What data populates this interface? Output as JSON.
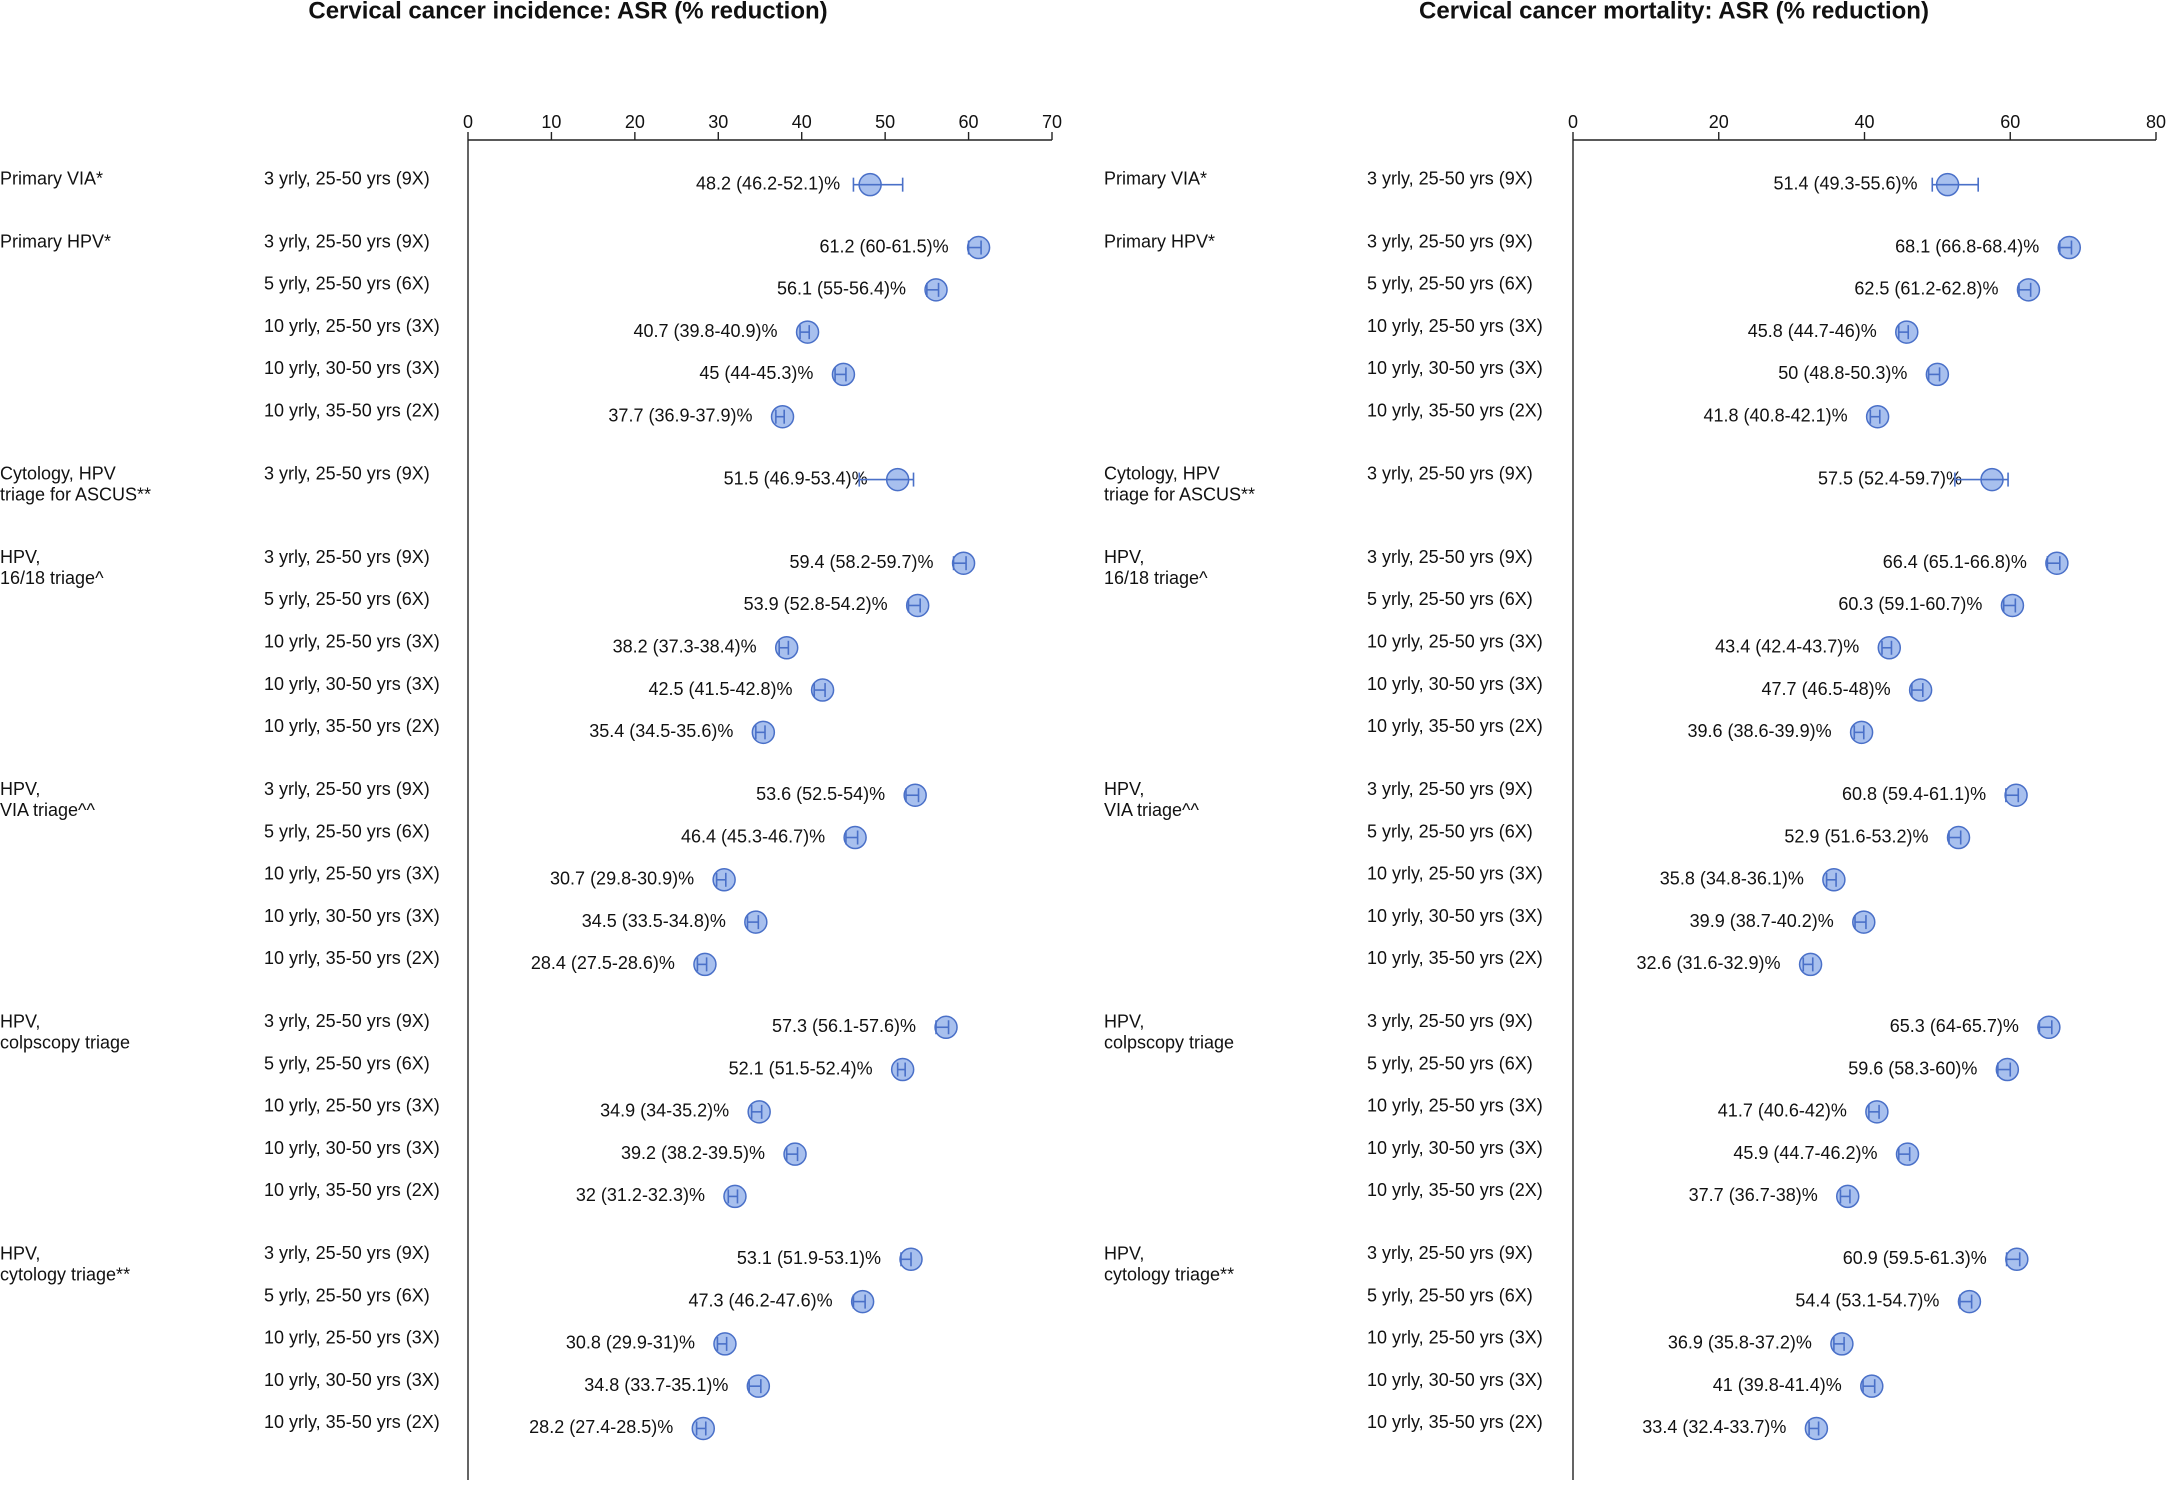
{
  "chart_data": [
    {
      "type": "forest",
      "title": "Cervical cancer incidence: ASR (% reduction)",
      "xlim": [
        0,
        70
      ],
      "xticks": [
        0,
        10,
        20,
        30,
        40,
        50,
        60,
        70
      ],
      "color": "#a8c0ee",
      "edgecolor": "#4a70c8",
      "groups": [
        {
          "name": "Primary VIA*",
          "categories": [
            "3 yrly, 25-50 yrs (9X)"
          ],
          "values": [
            48.2
          ],
          "lower": [
            46.2
          ],
          "upper": [
            52.1
          ],
          "value_labels": [
            "48.2 (46.2-52.1)%"
          ]
        },
        {
          "name": "Primary HPV*",
          "categories": [
            "3 yrly, 25-50 yrs (9X)",
            "5 yrly, 25-50 yrs (6X)",
            "10 yrly, 25-50 yrs (3X)",
            "10 yrly, 30-50 yrs (3X)",
            "10 yrly, 35-50 yrs (2X)"
          ],
          "values": [
            61.2,
            56.1,
            40.7,
            45,
            37.7
          ],
          "lower": [
            60,
            55,
            39.8,
            44,
            36.9
          ],
          "upper": [
            61.5,
            56.4,
            40.9,
            45.3,
            37.9
          ],
          "value_labels": [
            "61.2 (60-61.5)%",
            "56.1 (55-56.4)%",
            "40.7 (39.8-40.9)%",
            "45 (44-45.3)%",
            "37.7 (36.9-37.9)%"
          ]
        },
        {
          "name": "Cytology, HPV\ntriage for ASCUS**",
          "categories": [
            "3 yrly, 25-50 yrs (9X)"
          ],
          "values": [
            51.5
          ],
          "lower": [
            46.9
          ],
          "upper": [
            53.4
          ],
          "value_labels": [
            "51.5 (46.9-53.4)%"
          ]
        },
        {
          "name": "HPV,\n16/18 triage^",
          "categories": [
            "3 yrly, 25-50 yrs (9X)",
            "5 yrly, 25-50 yrs (6X)",
            "10 yrly, 25-50 yrs (3X)",
            "10 yrly, 30-50 yrs (3X)",
            "10 yrly, 35-50 yrs (2X)"
          ],
          "values": [
            59.4,
            53.9,
            38.2,
            42.5,
            35.4
          ],
          "lower": [
            58.2,
            52.8,
            37.3,
            41.5,
            34.5
          ],
          "upper": [
            59.7,
            54.2,
            38.4,
            42.8,
            35.6
          ],
          "value_labels": [
            "59.4 (58.2-59.7)%",
            "53.9 (52.8-54.2)%",
            "38.2 (37.3-38.4)%",
            "42.5 (41.5-42.8)%",
            "35.4 (34.5-35.6)%"
          ]
        },
        {
          "name": "HPV,\nVIA triage^^",
          "categories": [
            "3 yrly, 25-50 yrs (9X)",
            "5 yrly, 25-50 yrs (6X)",
            "10 yrly, 25-50 yrs (3X)",
            "10 yrly, 30-50 yrs (3X)",
            "10 yrly, 35-50 yrs (2X)"
          ],
          "values": [
            53.6,
            46.4,
            30.7,
            34.5,
            28.4
          ],
          "lower": [
            52.5,
            45.3,
            29.8,
            33.5,
            27.5
          ],
          "upper": [
            54,
            46.7,
            30.9,
            34.8,
            28.6
          ],
          "value_labels": [
            "53.6 (52.5-54)%",
            "46.4 (45.3-46.7)%",
            "30.7 (29.8-30.9)%",
            "34.5 (33.5-34.8)%",
            "28.4 (27.5-28.6)%"
          ]
        },
        {
          "name": "HPV,\ncolpscopy triage",
          "categories": [
            "3 yrly, 25-50 yrs (9X)",
            "5 yrly, 25-50 yrs (6X)",
            "10 yrly, 25-50 yrs (3X)",
            "10 yrly, 30-50 yrs (3X)",
            "10 yrly, 35-50 yrs (2X)"
          ],
          "values": [
            57.3,
            52.1,
            34.9,
            39.2,
            32
          ],
          "lower": [
            56.1,
            51.5,
            34,
            38.2,
            31.2
          ],
          "upper": [
            57.6,
            52.4,
            35.2,
            39.5,
            32.3
          ],
          "value_labels": [
            "57.3 (56.1-57.6)%",
            "52.1 (51.5-52.4)%",
            "34.9 (34-35.2)%",
            "39.2 (38.2-39.5)%",
            "32 (31.2-32.3)%"
          ]
        },
        {
          "name": "HPV,\ncytology triage**",
          "categories": [
            "3 yrly, 25-50 yrs (9X)",
            "5 yrly, 25-50 yrs (6X)",
            "10 yrly, 25-50 yrs (3X)",
            "10 yrly, 30-50 yrs (3X)",
            "10 yrly, 35-50 yrs (2X)"
          ],
          "values": [
            53.1,
            47.3,
            30.8,
            34.8,
            28.2
          ],
          "lower": [
            51.9,
            46.2,
            29.9,
            33.7,
            27.4
          ],
          "upper": [
            53.1,
            47.6,
            31,
            35.1,
            28.5
          ],
          "value_labels": [
            "53.1 (51.9-53.1)%",
            "47.3 (46.2-47.6)%",
            "30.8 (29.9-31)%",
            "34.8 (33.7-35.1)%",
            "28.2 (27.4-28.5)%"
          ]
        }
      ]
    },
    {
      "type": "forest",
      "title": "Cervical cancer mortality: ASR (% reduction)",
      "xlim": [
        0,
        80
      ],
      "xticks": [
        0,
        20,
        40,
        60,
        80
      ],
      "color": "#a8c0ee",
      "edgecolor": "#4a70c8",
      "groups": [
        {
          "name": "Primary VIA*",
          "categories": [
            "3 yrly, 25-50 yrs (9X)"
          ],
          "values": [
            51.4
          ],
          "lower": [
            49.3
          ],
          "upper": [
            55.6
          ],
          "value_labels": [
            "51.4 (49.3-55.6)%"
          ]
        },
        {
          "name": "Primary HPV*",
          "categories": [
            "3 yrly, 25-50 yrs (9X)",
            "5 yrly, 25-50 yrs (6X)",
            "10 yrly, 25-50 yrs (3X)",
            "10 yrly, 30-50 yrs (3X)",
            "10 yrly, 35-50 yrs (2X)"
          ],
          "values": [
            68.1,
            62.5,
            45.8,
            50,
            41.8
          ],
          "lower": [
            66.8,
            61.2,
            44.7,
            48.8,
            40.8
          ],
          "upper": [
            68.4,
            62.8,
            46,
            50.3,
            42.1
          ],
          "value_labels": [
            "68.1 (66.8-68.4)%",
            "62.5 (61.2-62.8)%",
            "45.8 (44.7-46)%",
            "50 (48.8-50.3)%",
            "41.8 (40.8-42.1)%"
          ]
        },
        {
          "name": "Cytology, HPV\ntriage for ASCUS**",
          "categories": [
            "3 yrly, 25-50 yrs (9X)"
          ],
          "values": [
            57.5
          ],
          "lower": [
            52.4
          ],
          "upper": [
            59.7
          ],
          "value_labels": [
            "57.5 (52.4-59.7)%"
          ]
        },
        {
          "name": "HPV,\n16/18 triage^",
          "categories": [
            "3 yrly, 25-50 yrs (9X)",
            "5 yrly, 25-50 yrs (6X)",
            "10 yrly, 25-50 yrs (3X)",
            "10 yrly, 30-50 yrs (3X)",
            "10 yrly, 35-50 yrs (2X)"
          ],
          "values": [
            66.4,
            60.3,
            43.4,
            47.7,
            39.6
          ],
          "lower": [
            65.1,
            59.1,
            42.4,
            46.5,
            38.6
          ],
          "upper": [
            66.8,
            60.7,
            43.7,
            48,
            39.9
          ],
          "value_labels": [
            "66.4 (65.1-66.8)%",
            "60.3 (59.1-60.7)%",
            "43.4 (42.4-43.7)%",
            "47.7 (46.5-48)%",
            "39.6 (38.6-39.9)%"
          ]
        },
        {
          "name": "HPV,\nVIA triage^^",
          "categories": [
            "3 yrly, 25-50 yrs (9X)",
            "5 yrly, 25-50 yrs (6X)",
            "10 yrly, 25-50 yrs (3X)",
            "10 yrly, 30-50 yrs (3X)",
            "10 yrly, 35-50 yrs (2X)"
          ],
          "values": [
            60.8,
            52.9,
            35.8,
            39.9,
            32.6
          ],
          "lower": [
            59.4,
            51.6,
            34.8,
            38.7,
            31.6
          ],
          "upper": [
            61.1,
            53.2,
            36.1,
            40.2,
            32.9
          ],
          "value_labels": [
            "60.8 (59.4-61.1)%",
            "52.9 (51.6-53.2)%",
            "35.8 (34.8-36.1)%",
            "39.9 (38.7-40.2)%",
            "32.6 (31.6-32.9)%"
          ]
        },
        {
          "name": "HPV,\ncolpscopy triage",
          "categories": [
            "3 yrly, 25-50 yrs (9X)",
            "5 yrly, 25-50 yrs (6X)",
            "10 yrly, 25-50 yrs (3X)",
            "10 yrly, 30-50 yrs (3X)",
            "10 yrly, 35-50 yrs (2X)"
          ],
          "values": [
            65.3,
            59.6,
            41.7,
            45.9,
            37.7
          ],
          "lower": [
            64,
            58.3,
            40.6,
            44.7,
            36.7
          ],
          "upper": [
            65.7,
            60,
            42,
            46.2,
            38
          ],
          "value_labels": [
            "65.3 (64-65.7)%",
            "59.6 (58.3-60)%",
            "41.7 (40.6-42)%",
            "45.9 (44.7-46.2)%",
            "37.7 (36.7-38)%"
          ]
        },
        {
          "name": "HPV,\ncytology triage**",
          "categories": [
            "3 yrly, 25-50 yrs (9X)",
            "5 yrly, 25-50 yrs (6X)",
            "10 yrly, 25-50 yrs (3X)",
            "10 yrly, 30-50 yrs (3X)",
            "10 yrly, 35-50 yrs (2X)"
          ],
          "values": [
            60.9,
            54.4,
            36.9,
            41,
            33.4
          ],
          "lower": [
            59.5,
            53.1,
            35.8,
            39.8,
            32.4
          ],
          "upper": [
            61.3,
            54.7,
            37.2,
            41.4,
            33.7
          ],
          "value_labels": [
            "60.9 (59.5-61.3)%",
            "54.4 (53.1-54.7)%",
            "36.9 (35.8-37.2)%",
            "41 (39.8-41.4)%",
            "33.4 (32.4-33.7)%"
          ]
        }
      ]
    }
  ]
}
